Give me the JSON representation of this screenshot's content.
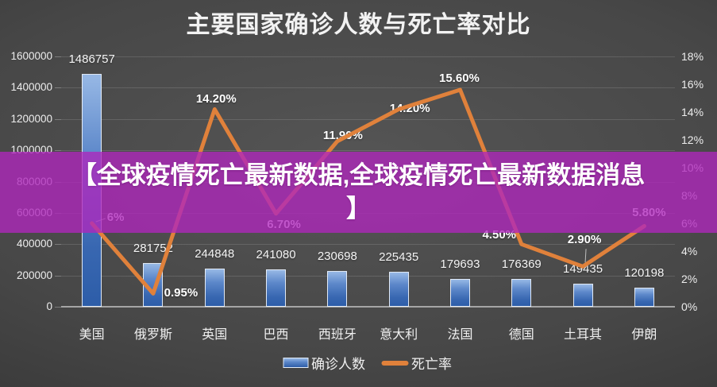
{
  "title": "主要国家确诊人数与死亡率对比",
  "overlay": {
    "line1": "【全球疫情死亡最新数据,全球疫情死亡最新数据消息",
    "line2": "】"
  },
  "chart_data": {
    "type": "bar+line combo",
    "title": "主要国家确诊人数与死亡率对比",
    "categories": [
      "美国",
      "俄罗斯",
      "英国",
      "巴西",
      "西班牙",
      "意大利",
      "法国",
      "德国",
      "土耳其",
      "伊朗"
    ],
    "series": [
      {
        "name": "确诊人数",
        "type": "bar",
        "axis": "left",
        "color": "#3a6cb4",
        "values": [
          1486757,
          281752,
          244848,
          241080,
          230698,
          225435,
          179693,
          176369,
          149435,
          120198
        ],
        "value_labels": [
          "1486757",
          "281752",
          "244848",
          "241080",
          "230698",
          "225435",
          "179693",
          "176369",
          "149435",
          "120198"
        ]
      },
      {
        "name": "死亡率",
        "type": "line",
        "axis": "right",
        "color": "#e0813b",
        "values": [
          6,
          0.95,
          14.2,
          6.7,
          11.9,
          14.2,
          15.6,
          4.5,
          2.9,
          5.8
        ],
        "value_labels": [
          "6%",
          "0.95%",
          "14.20%",
          "6.70%",
          "11.90%",
          "14.20%",
          "15.60%",
          "4.50%",
          "2.90%",
          "5.80%"
        ]
      }
    ],
    "left_axis": {
      "min": 0,
      "max": 1600000,
      "step": 200000,
      "tick_labels": [
        "0",
        "200000",
        "400000",
        "600000",
        "800000",
        "1000000",
        "1200000",
        "1400000",
        "1600000"
      ]
    },
    "right_axis": {
      "min": 0,
      "max": 18,
      "step": 2,
      "tick_labels": [
        "0%",
        "2%",
        "4%",
        "6%",
        "8%",
        "10%",
        "12%",
        "14%",
        "16%",
        "18%"
      ]
    },
    "legend": [
      "确诊人数",
      "死亡率"
    ],
    "grid": "horizontal",
    "legend_position": "bottom-center"
  }
}
